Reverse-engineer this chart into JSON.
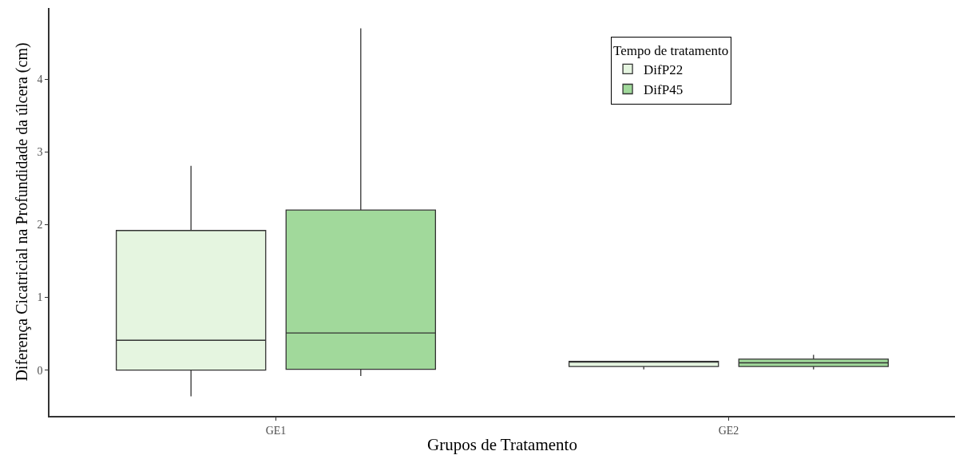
{
  "chart_data": {
    "type": "box",
    "xlabel": "Grupos de Tratamento",
    "ylabel": "Diferença Cicatricial na Profundidade da úlcera (cm)",
    "legend_title": "Tempo de tratamento",
    "categories": [
      "GE1",
      "GE2"
    ],
    "series": [
      {
        "name": "DifP22",
        "color": "#e5f5e0",
        "boxes": [
          {
            "low": -0.36,
            "q1": 0.0,
            "median": 0.41,
            "q3": 1.92,
            "high": 2.81
          },
          {
            "low": 0.01,
            "q1": 0.05,
            "median": 0.11,
            "q3": 0.12,
            "high": 0.12
          }
        ]
      },
      {
        "name": "DifP45",
        "color": "#a1d99b",
        "boxes": [
          {
            "low": -0.08,
            "q1": 0.01,
            "median": 0.51,
            "q3": 2.2,
            "high": 4.7
          },
          {
            "low": 0.01,
            "q1": 0.05,
            "median": 0.1,
            "q3": 0.15,
            "high": 0.21
          }
        ]
      }
    ],
    "ylim": [
      -0.63,
      4.98
    ],
    "yticks": [
      0,
      1,
      2,
      3,
      4
    ],
    "legend": "top right"
  }
}
